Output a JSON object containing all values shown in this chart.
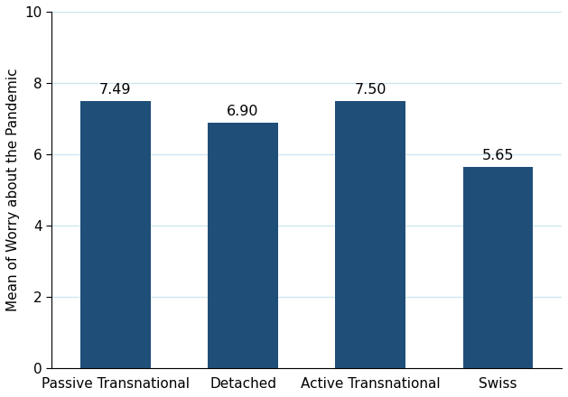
{
  "categories": [
    "Passive Transnational",
    "Detached",
    "Active Transnational",
    "Swiss"
  ],
  "values": [
    7.49,
    6.9,
    7.5,
    5.65
  ],
  "bar_color": "#1f4e79",
  "ylabel": "Mean of Worry about the Pandemic",
  "ylim": [
    0,
    10
  ],
  "yticks": [
    0,
    2,
    4,
    6,
    8,
    10
  ],
  "bar_width": 0.55,
  "label_fontsize": 11.5,
  "tick_fontsize": 11,
  "ylabel_fontsize": 11,
  "value_labels": [
    "7.49",
    "6.90",
    "7.50",
    "5.65"
  ],
  "background_color": "#ffffff",
  "grid_color": "#cce5f0",
  "bar_edge_color": "none"
}
